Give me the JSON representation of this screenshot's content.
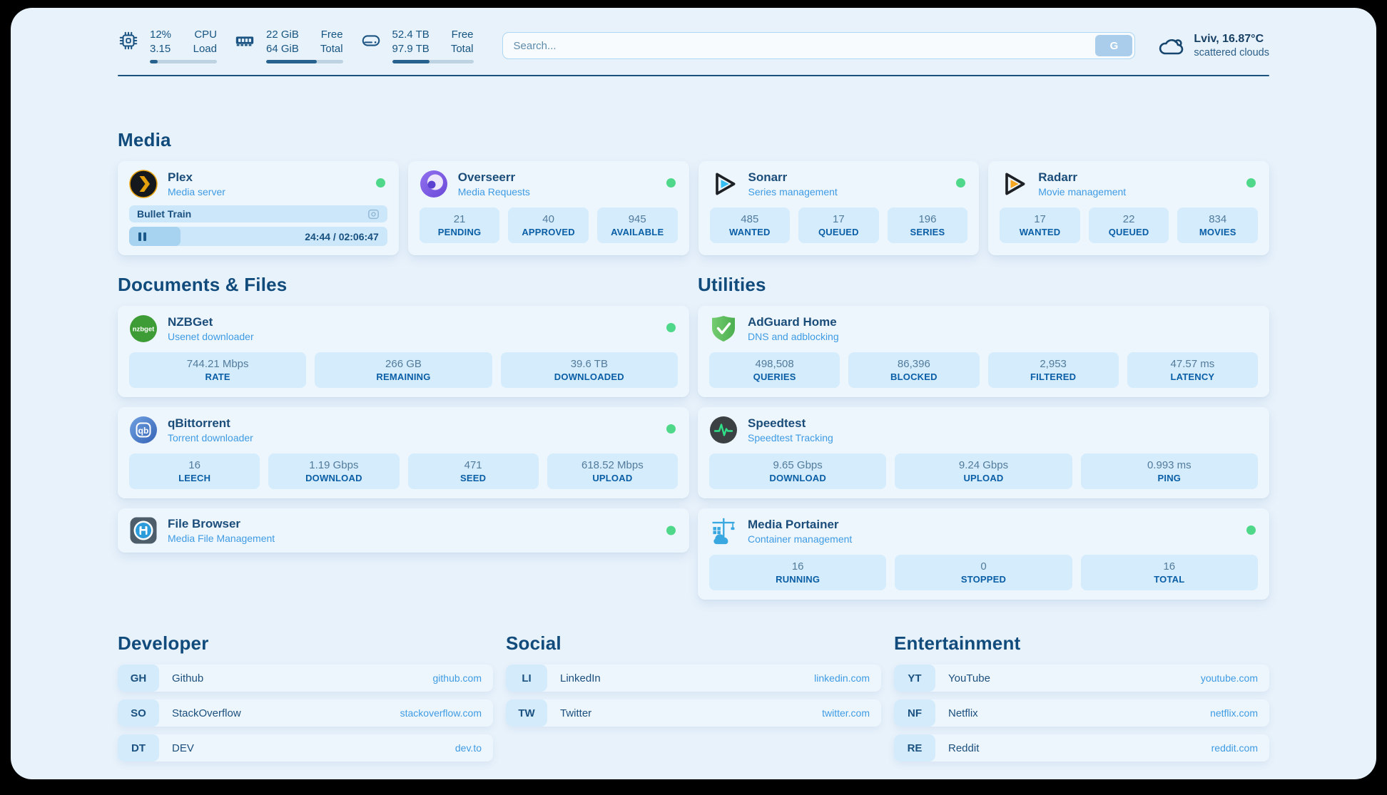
{
  "header": {
    "stats": [
      {
        "v1": "12%",
        "v2": "3.15",
        "l1": "CPU",
        "l2": "Load",
        "progress": 12
      },
      {
        "v1": "22 GiB",
        "v2": "64 GiB",
        "l1": "Free",
        "l2": "Total",
        "progress": 66
      },
      {
        "v1": "52.4 TB",
        "v2": "97.9 TB",
        "l1": "Free",
        "l2": "Total",
        "progress": 46
      }
    ],
    "search": {
      "placeholder": "Search...",
      "button_label": "G"
    },
    "weather": {
      "title": "Lviv, 16.87°C",
      "subtitle": "scattered clouds"
    }
  },
  "media": {
    "title": "Media",
    "plex": {
      "name": "Plex",
      "desc": "Media server",
      "now_playing": "Bullet Train",
      "time": "24:44 / 02:06:47",
      "progress": 20
    },
    "overseerr": {
      "name": "Overseerr",
      "desc": "Media Requests",
      "stats": [
        {
          "value": "21",
          "label": "PENDING"
        },
        {
          "value": "40",
          "label": "APPROVED"
        },
        {
          "value": "945",
          "label": "AVAILABLE"
        }
      ]
    },
    "sonarr": {
      "name": "Sonarr",
      "desc": "Series management",
      "stats": [
        {
          "value": "485",
          "label": "WANTED"
        },
        {
          "value": "17",
          "label": "QUEUED"
        },
        {
          "value": "196",
          "label": "SERIES"
        }
      ]
    },
    "radarr": {
      "name": "Radarr",
      "desc": "Movie management",
      "stats": [
        {
          "value": "17",
          "label": "WANTED"
        },
        {
          "value": "22",
          "label": "QUEUED"
        },
        {
          "value": "834",
          "label": "MOVIES"
        }
      ]
    }
  },
  "documents": {
    "title": "Documents & Files",
    "nzbget": {
      "name": "NZBGet",
      "desc": "Usenet downloader",
      "stats": [
        {
          "value": "744.21 Mbps",
          "label": "RATE"
        },
        {
          "value": "266 GB",
          "label": "REMAINING"
        },
        {
          "value": "39.6 TB",
          "label": "DOWNLOADED"
        }
      ]
    },
    "qbittorrent": {
      "name": "qBittorrent",
      "desc": "Torrent downloader",
      "stats": [
        {
          "value": "16",
          "label": "LEECH"
        },
        {
          "value": "1.19 Gbps",
          "label": "DOWNLOAD"
        },
        {
          "value": "471",
          "label": "SEED"
        },
        {
          "value": "618.52 Mbps",
          "label": "UPLOAD"
        }
      ]
    },
    "filebrowser": {
      "name": "File Browser",
      "desc": "Media File Management"
    }
  },
  "utilities": {
    "title": "Utilities",
    "adguard": {
      "name": "AdGuard Home",
      "desc": "DNS and adblocking",
      "stats": [
        {
          "value": "498,508",
          "label": "QUERIES"
        },
        {
          "value": "86,396",
          "label": "BLOCKED"
        },
        {
          "value": "2,953",
          "label": "FILTERED"
        },
        {
          "value": "47.57 ms",
          "label": "LATENCY"
        }
      ]
    },
    "speedtest": {
      "name": "Speedtest",
      "desc": "Speedtest Tracking",
      "stats": [
        {
          "value": "9.65 Gbps",
          "label": "DOWNLOAD"
        },
        {
          "value": "9.24 Gbps",
          "label": "UPLOAD"
        },
        {
          "value": "0.993 ms",
          "label": "PING"
        }
      ]
    },
    "portainer": {
      "name": "Media Portainer",
      "desc": "Container management",
      "stats": [
        {
          "value": "16",
          "label": "RUNNING"
        },
        {
          "value": "0",
          "label": "STOPPED"
        },
        {
          "value": "16",
          "label": "TOTAL"
        }
      ]
    }
  },
  "links": {
    "developer": {
      "title": "Developer",
      "items": [
        {
          "badge": "GH",
          "name": "Github",
          "url": "github.com"
        },
        {
          "badge": "SO",
          "name": "StackOverflow",
          "url": "stackoverflow.com"
        },
        {
          "badge": "DT",
          "name": "DEV",
          "url": "dev.to"
        }
      ]
    },
    "social": {
      "title": "Social",
      "items": [
        {
          "badge": "LI",
          "name": "LinkedIn",
          "url": "linkedin.com"
        },
        {
          "badge": "TW",
          "name": "Twitter",
          "url": "twitter.com"
        }
      ]
    },
    "entertainment": {
      "title": "Entertainment",
      "items": [
        {
          "badge": "YT",
          "name": "YouTube",
          "url": "youtube.com"
        },
        {
          "badge": "NF",
          "name": "Netflix",
          "url": "netflix.com"
        },
        {
          "badge": "RE",
          "name": "Reddit",
          "url": "reddit.com"
        }
      ]
    }
  },
  "colors": {
    "status_online": "#50d88a",
    "accent": "#3e9be3",
    "heading": "#114b7c"
  }
}
